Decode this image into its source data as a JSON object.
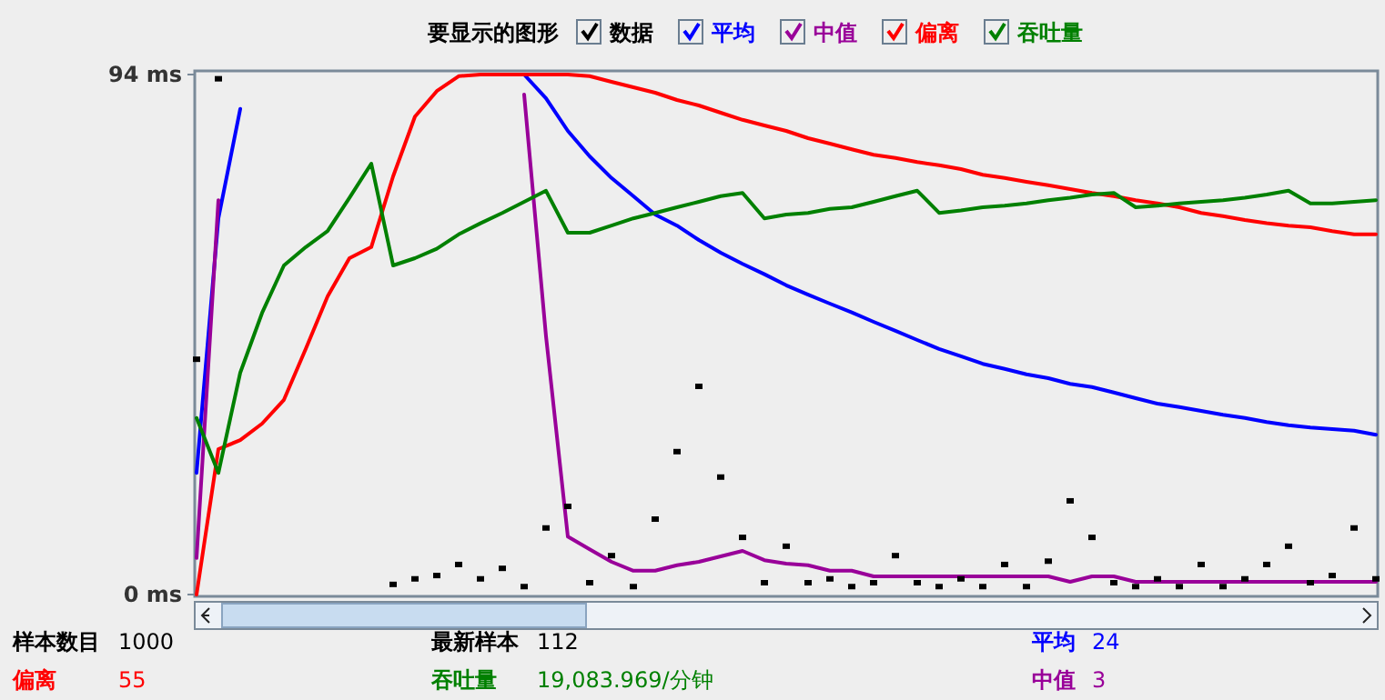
{
  "chart_data": {
    "type": "line",
    "legend_title": "要显示的图形",
    "legend": "top",
    "grid": false,
    "categories": [
      null,
      null,
      null,
      null,
      null,
      null,
      null,
      null,
      null,
      null,
      null,
      null,
      null,
      null,
      null,
      null,
      null,
      null,
      null,
      null,
      null,
      null,
      null,
      null,
      null,
      null,
      null,
      null,
      null,
      null,
      null,
      null,
      null,
      null,
      null,
      null,
      null,
      null,
      null,
      null,
      null,
      null,
      null,
      null,
      null,
      null,
      null,
      null,
      null,
      null,
      null,
      null,
      null,
      null,
      null
    ],
    "ylim": [
      0,
      94
    ],
    "yticks": [
      {
        "value": 94,
        "label": "94 ms"
      },
      {
        "value": 0,
        "label": "0 ms"
      }
    ],
    "series": [
      {
        "name": "数据",
        "type": "scatter",
        "color": "#000000",
        "values": [
          42.7,
          93.4,
          null,
          null,
          null,
          null,
          null,
          null,
          null,
          2.0,
          3.0,
          3.6,
          5.6,
          3.0,
          4.9,
          1.6,
          12.2,
          16.1,
          2.3,
          7.2,
          1.6,
          13.8,
          26.0,
          37.8,
          21.4,
          10.5,
          2.3,
          8.9,
          2.3,
          3.0,
          1.6,
          2.3,
          7.2,
          2.3,
          1.6,
          3.0,
          1.6,
          5.6,
          1.6,
          6.2,
          17.1,
          10.5,
          2.3,
          1.6,
          3.0,
          1.6,
          5.6,
          1.6,
          3.0,
          5.6,
          8.9,
          2.3,
          3.6,
          12.2,
          3.0
        ]
      },
      {
        "name": "平均",
        "color": "#0000ff",
        "values": [
          22.0,
          68.0,
          87.8,
          null,
          null,
          null,
          null,
          null,
          null,
          null,
          null,
          null,
          null,
          null,
          null,
          94.0,
          89.7,
          83.8,
          79.2,
          75.3,
          72.0,
          68.7,
          66.7,
          64.1,
          61.8,
          59.8,
          57.9,
          55.9,
          54.2,
          52.6,
          51.0,
          49.3,
          47.7,
          46.0,
          44.4,
          43.1,
          41.7,
          40.8,
          39.8,
          39.1,
          38.1,
          37.5,
          36.5,
          35.5,
          34.5,
          33.9,
          33.2,
          32.5,
          31.9,
          31.2,
          30.6,
          30.2,
          29.9,
          29.6,
          28.9
        ]
      },
      {
        "name": "中值",
        "color": "#990099",
        "values": [
          6.6,
          71.3,
          null,
          null,
          null,
          null,
          null,
          null,
          null,
          null,
          null,
          null,
          null,
          null,
          null,
          90.4,
          46.7,
          10.5,
          8.2,
          5.9,
          4.3,
          4.3,
          5.3,
          5.9,
          6.9,
          7.9,
          6.2,
          5.6,
          5.3,
          4.3,
          4.3,
          3.3,
          3.3,
          3.3,
          3.3,
          3.3,
          3.3,
          3.3,
          3.3,
          3.3,
          2.3,
          3.3,
          3.3,
          2.3,
          2.3,
          2.3,
          2.3,
          2.3,
          2.3,
          2.3,
          2.3,
          2.3,
          2.3,
          2.3,
          2.3
        ]
      },
      {
        "name": "偏离",
        "color": "#ff0000",
        "values": [
          0,
          26.3,
          27.9,
          30.9,
          35.2,
          44.4,
          53.9,
          60.8,
          62.8,
          75.6,
          86.4,
          91.0,
          93.7,
          94,
          94,
          94,
          94,
          94,
          93.7,
          92.7,
          91.7,
          90.7,
          89.4,
          88.4,
          87.1,
          85.8,
          84.8,
          83.8,
          82.5,
          81.5,
          80.5,
          79.5,
          78.9,
          78.2,
          77.6,
          76.9,
          75.9,
          75.3,
          74.6,
          74.0,
          73.3,
          72.6,
          72.0,
          71.3,
          70.7,
          70.0,
          69.0,
          68.4,
          67.7,
          67.1,
          66.7,
          66.4,
          65.7,
          65.1,
          65.1
        ]
      },
      {
        "name": "吞吐量",
        "color": "#008000",
        "values": [
          31.9,
          22.0,
          40.1,
          50.9,
          59.5,
          62.8,
          65.7,
          71.7,
          77.9,
          59.5,
          60.8,
          62.5,
          65.1,
          67.1,
          69.0,
          71.0,
          73.0,
          65.4,
          65.4,
          66.7,
          68.0,
          69.0,
          70.0,
          71.0,
          72.0,
          72.6,
          68.0,
          68.7,
          69.0,
          69.7,
          70.0,
          71.0,
          72.0,
          73.0,
          69.0,
          69.4,
          70.0,
          70.3,
          70.7,
          71.3,
          71.7,
          72.3,
          72.6,
          70.0,
          70.3,
          70.7,
          71.0,
          71.3,
          71.7,
          72.3,
          73.0,
          70.7,
          70.7,
          71.0,
          71.3
        ]
      }
    ],
    "annotations": [
      "样本数目",
      "1000",
      "最新样本",
      "112",
      "平均",
      "24",
      "偏离",
      "55",
      "吞吐量",
      "19,083.969/分钟",
      "中值",
      "3"
    ]
  }
}
